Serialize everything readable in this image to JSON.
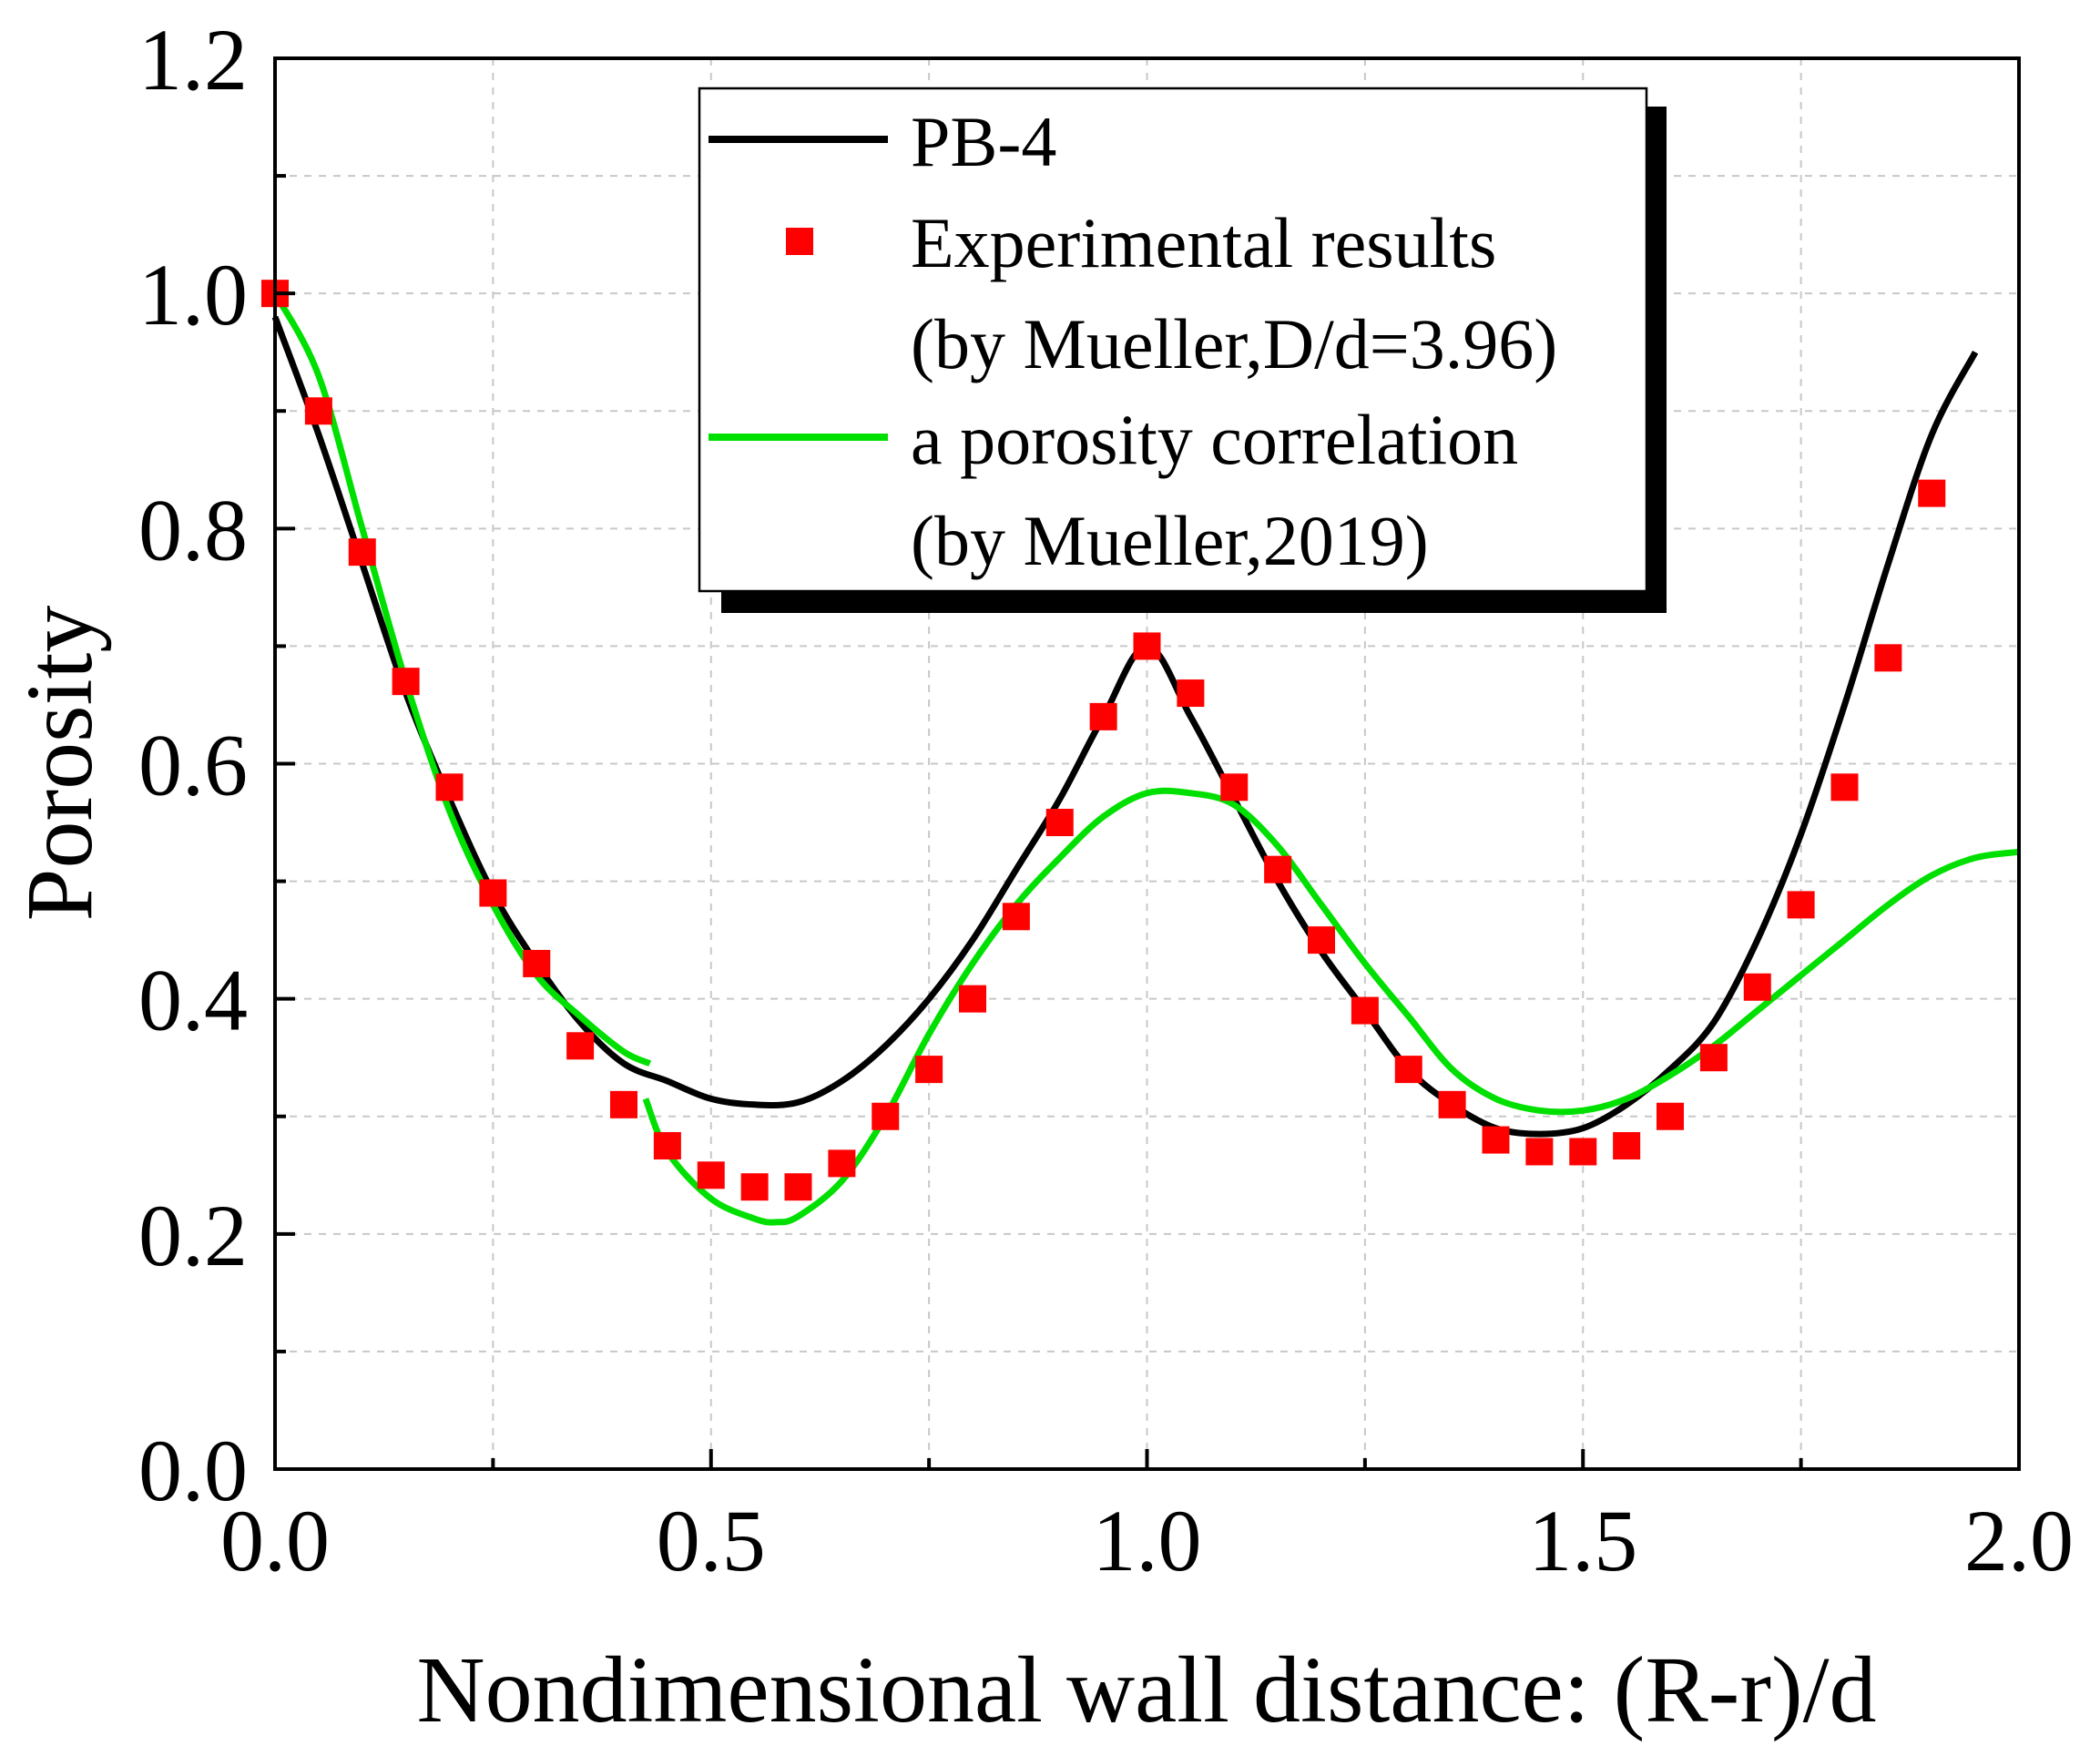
{
  "chart_data": {
    "type": "line",
    "title": "",
    "xlabel": "Nondimensional wall distance: (R-r)/d",
    "ylabel": "Porosity",
    "xlim": [
      0,
      2
    ],
    "ylim": [
      0,
      1.2
    ],
    "xticks": [
      "0.0",
      "0.5",
      "1.0",
      "1.5",
      "2.0"
    ],
    "xtick_values": [
      0,
      0.5,
      1.0,
      1.5,
      2.0
    ],
    "yticks": [
      "0.0",
      "0.2",
      "0.4",
      "0.6",
      "0.8",
      "1.0",
      "1.2"
    ],
    "ytick_values": [
      0,
      0.2,
      0.4,
      0.6,
      0.8,
      1.0,
      1.2
    ],
    "grid": true,
    "legend_position": "top-center",
    "legend": {
      "pb4": "PB-4",
      "exp_line1": "Experimental results",
      "exp_line2": "(by Mueller,D/d=3.96)",
      "corr_line1": "a porosity correlation",
      "corr_line2": "(by Mueller,2019)"
    },
    "series": [
      {
        "name": "PB-4",
        "kind": "line",
        "color": "#000000",
        "x": [
          0,
          0.05,
          0.1,
          0.15,
          0.2,
          0.25,
          0.3,
          0.35,
          0.4,
          0.45,
          0.5,
          0.55,
          0.6,
          0.65,
          0.7,
          0.75,
          0.8,
          0.85,
          0.9,
          0.95,
          1.0,
          1.05,
          1.1,
          1.15,
          1.2,
          1.25,
          1.3,
          1.35,
          1.4,
          1.45,
          1.5,
          1.55,
          1.6,
          1.65,
          1.7,
          1.75,
          1.8,
          1.85,
          1.9,
          1.95
        ],
        "y": [
          0.98,
          0.88,
          0.77,
          0.66,
          0.57,
          0.49,
          0.43,
          0.38,
          0.345,
          0.33,
          0.315,
          0.31,
          0.312,
          0.33,
          0.36,
          0.4,
          0.45,
          0.51,
          0.57,
          0.64,
          0.7,
          0.64,
          0.57,
          0.5,
          0.44,
          0.39,
          0.34,
          0.31,
          0.29,
          0.285,
          0.29,
          0.31,
          0.34,
          0.38,
          0.45,
          0.54,
          0.65,
          0.77,
          0.88,
          0.95
        ]
      },
      {
        "name": "Experimental results (by Mueller,D/d=3.96)",
        "kind": "scatter",
        "color": "#ff0000",
        "x": [
          0.0,
          0.05,
          0.1,
          0.15,
          0.2,
          0.25,
          0.3,
          0.35,
          0.4,
          0.45,
          0.5,
          0.55,
          0.6,
          0.65,
          0.7,
          0.75,
          0.8,
          0.85,
          0.9,
          0.95,
          1.0,
          1.05,
          1.1,
          1.15,
          1.2,
          1.25,
          1.3,
          1.35,
          1.4,
          1.45,
          1.5,
          1.55,
          1.6,
          1.65,
          1.7,
          1.75,
          1.8,
          1.85,
          1.9
        ],
        "y": [
          1.0,
          0.9,
          0.78,
          0.67,
          0.58,
          0.49,
          0.43,
          0.36,
          0.31,
          0.275,
          0.25,
          0.24,
          0.24,
          0.26,
          0.3,
          0.34,
          0.4,
          0.47,
          0.55,
          0.64,
          0.7,
          0.66,
          0.58,
          0.51,
          0.45,
          0.39,
          0.34,
          0.31,
          0.28,
          0.27,
          0.27,
          0.275,
          0.3,
          0.35,
          0.41,
          0.48,
          0.58,
          0.69,
          0.83
        ]
      },
      {
        "name": "a porosity correlation (by Mueller,2019)",
        "kind": "line",
        "color": "#00e000",
        "segments": [
          {
            "x": [
              0,
              0.05,
              0.1,
              0.15,
              0.2,
              0.25,
              0.3,
              0.35,
              0.4,
              0.43
            ],
            "y": [
              1.0,
              0.93,
              0.8,
              0.67,
              0.56,
              0.48,
              0.42,
              0.385,
              0.355,
              0.345
            ]
          },
          {
            "x": [
              0.425,
              0.45,
              0.5,
              0.55,
              0.575,
              0.6,
              0.65,
              0.7,
              0.75,
              0.8,
              0.85,
              0.9,
              0.95,
              1.0,
              1.05,
              1.1,
              1.15,
              1.2,
              1.25,
              1.3,
              1.35,
              1.4,
              1.45,
              1.5,
              1.55,
              1.6,
              1.65,
              1.7,
              1.75,
              1.8,
              1.85,
              1.9,
              1.95,
              2.0
            ],
            "y": [
              0.315,
              0.27,
              0.23,
              0.213,
              0.21,
              0.215,
              0.245,
              0.3,
              0.37,
              0.43,
              0.48,
              0.52,
              0.555,
              0.575,
              0.575,
              0.565,
              0.53,
              0.48,
              0.43,
              0.385,
              0.34,
              0.315,
              0.305,
              0.305,
              0.315,
              0.335,
              0.36,
              0.39,
              0.42,
              0.45,
              0.48,
              0.505,
              0.52,
              0.525
            ]
          }
        ]
      }
    ]
  }
}
